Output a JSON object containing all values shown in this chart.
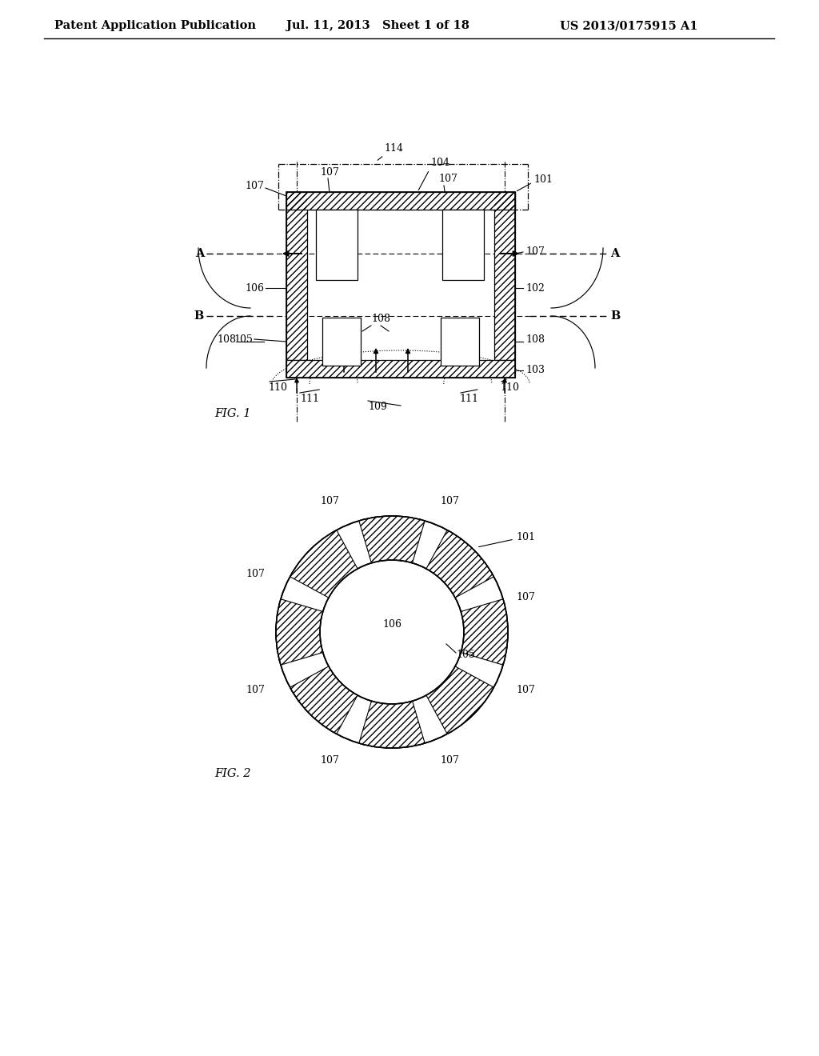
{
  "bg_color": "#ffffff",
  "header_text": "Patent Application Publication",
  "header_date": "Jul. 11, 2013   Sheet 1 of 18",
  "header_patent": "US 2013/0175915 A1",
  "fig1_label": "FIG. 1",
  "fig2_label": "FIG. 2",
  "font_size_header": 10.5,
  "font_size_ref": 9.0,
  "font_size_fig": 10.5
}
